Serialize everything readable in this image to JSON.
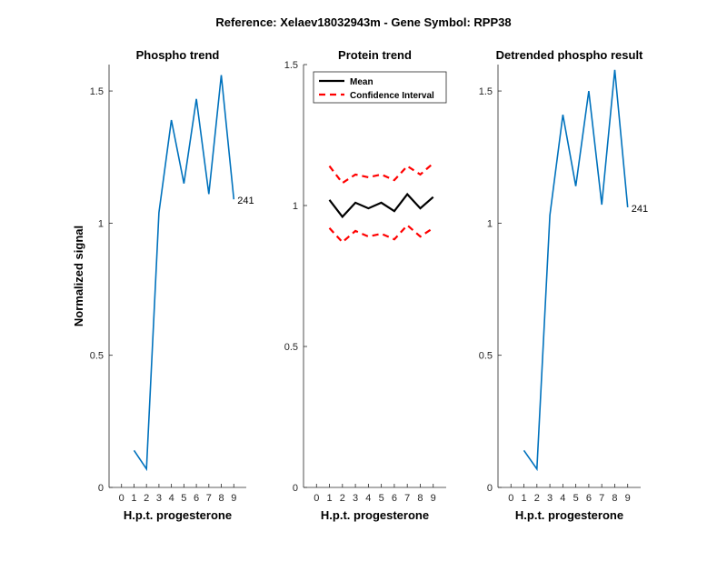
{
  "figure_title": "Reference:  Xelaev18032943m - Gene Symbol:  RPP38",
  "colors": {
    "series": "#0072BD",
    "mean": "#000000",
    "ci": "#FF0000",
    "axis": "#262626"
  },
  "chart_data": [
    {
      "type": "line",
      "title": "Phospho trend",
      "xlabel": "H.p.t. progesterone",
      "ylabel": "Normalized signal",
      "x": [
        0,
        1,
        2,
        3,
        4,
        5,
        6,
        7,
        8,
        9
      ],
      "xlim": [
        -1,
        10
      ],
      "ylim": [
        0,
        1.6
      ],
      "yticks": [
        0,
        0.5,
        1,
        1.5
      ],
      "yticklabels": [
        "0",
        "0.5",
        "1",
        "1.5"
      ],
      "series": [
        {
          "values": [
            0.14,
            0.07,
            1.04,
            1.39,
            1.15,
            1.47,
            1.11,
            1.56,
            1.09
          ],
          "x": [
            1,
            2,
            3,
            4,
            5,
            6,
            7,
            8,
            9
          ]
        }
      ],
      "annotation": {
        "text": "241",
        "x": 9,
        "y": 1.09
      }
    },
    {
      "type": "line",
      "title": "Protein trend",
      "xlabel": "H.p.t. progesterone",
      "x": [
        0,
        1,
        2,
        3,
        4,
        5,
        6,
        7,
        8,
        9
      ],
      "xlim": [
        -1,
        10
      ],
      "ylim": [
        0,
        1.5
      ],
      "yticks": [
        0,
        0.5,
        1,
        1.5
      ],
      "yticklabels": [
        "0",
        "0.5",
        "1",
        "1.5"
      ],
      "legend": {
        "position": "top-left",
        "entries": [
          "Mean",
          "Confidence Interval"
        ]
      },
      "series": [
        {
          "name": "Mean",
          "x": [
            1,
            2,
            3,
            4,
            5,
            6,
            7,
            8,
            9
          ],
          "values": [
            1.02,
            0.96,
            1.01,
            0.99,
            1.01,
            0.98,
            1.04,
            0.99,
            1.03
          ]
        },
        {
          "name": "Confidence Interval",
          "x": [
            1,
            2,
            3,
            4,
            5,
            6,
            7,
            8,
            9
          ],
          "values": [
            1.14,
            1.08,
            1.11,
            1.1,
            1.11,
            1.09,
            1.14,
            1.11,
            1.15
          ]
        },
        {
          "name": "Confidence Interval",
          "x": [
            1,
            2,
            3,
            4,
            5,
            6,
            7,
            8,
            9
          ],
          "values": [
            0.92,
            0.87,
            0.91,
            0.89,
            0.9,
            0.88,
            0.93,
            0.89,
            0.92
          ]
        }
      ]
    },
    {
      "type": "line",
      "title": "Detrended phospho result",
      "xlabel": "H.p.t. progesterone",
      "x": [
        0,
        1,
        2,
        3,
        4,
        5,
        6,
        7,
        8,
        9
      ],
      "xlim": [
        -1,
        10
      ],
      "ylim": [
        0,
        1.6
      ],
      "yticks": [
        0,
        0.5,
        1,
        1.5
      ],
      "yticklabels": [
        "0",
        "0.5",
        "1",
        "1.5"
      ],
      "series": [
        {
          "x": [
            1,
            2,
            3,
            4,
            5,
            6,
            7,
            8,
            9
          ],
          "values": [
            0.14,
            0.07,
            1.03,
            1.41,
            1.14,
            1.5,
            1.07,
            1.58,
            1.06
          ]
        }
      ],
      "annotation": {
        "text": "241",
        "x": 9,
        "y": 1.06
      }
    }
  ]
}
